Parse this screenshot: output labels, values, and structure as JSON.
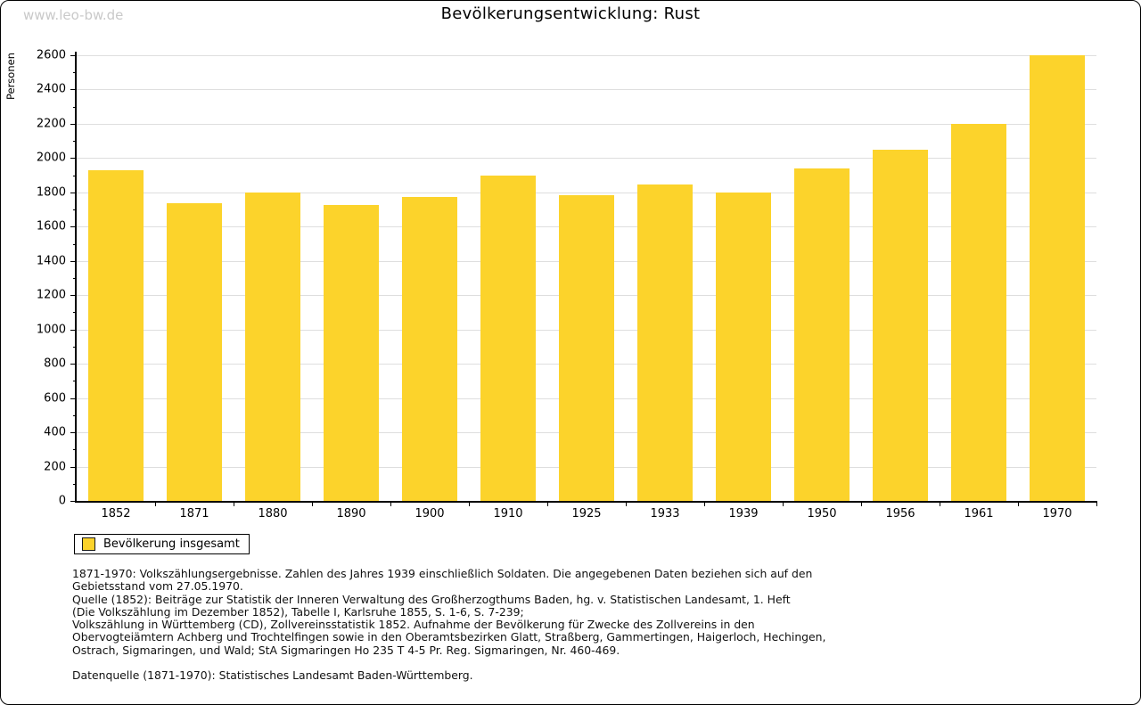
{
  "watermark": "www.leo-bw.de",
  "header": {
    "title": "Bevölkerungsentwicklung: Rust"
  },
  "chart_data": {
    "type": "bar",
    "title": "Bevölkerungsentwicklung: Rust",
    "categories": [
      "1852",
      "1871",
      "1880",
      "1890",
      "1900",
      "1910",
      "1925",
      "1933",
      "1939",
      "1950",
      "1956",
      "1961",
      "1970"
    ],
    "values": [
      1930,
      1735,
      1800,
      1725,
      1775,
      1900,
      1785,
      1845,
      1800,
      1940,
      2050,
      2200,
      2600
    ],
    "xlabel": "",
    "ylabel": "Personen",
    "ylim": [
      0,
      2600
    ],
    "ytick_step": 200,
    "minor_tick_step": 100,
    "grid": true,
    "legend_position": "bottom-left",
    "legend_entries": [
      "Bevölkerung insgesamt"
    ],
    "bar_color": "#FCD32B",
    "gridline_color": "#dedede",
    "axis_color": "#000000"
  },
  "legend": {
    "label": "Bevölkerung insgesamt",
    "swatch_color": "#FCD32B"
  },
  "footnotes": [
    "1871-1970: Volkszählungsergebnisse. Zahlen des Jahres 1939 einschließlich Soldaten. Die angegebenen Daten beziehen sich auf den",
    "Gebietsstand vom 27.05.1970.",
    "Quelle (1852): Beiträge zur Statistik der Inneren Verwaltung des Großherzogthums Baden, hg. v. Statistischen Landesamt, 1. Heft",
    "(Die Volkszählung im Dezember 1852), Tabelle I, Karlsruhe 1855, S. 1-6, S. 7-239;",
    "Volkszählung in Württemberg (CD), Zollvereinsstatistik 1852. Aufnahme der Bevölkerung für Zwecke des Zollvereins in den",
    "Obervogteiämtern Achberg und Trochtelfingen sowie in den Oberamtsbezirken Glatt, Straßberg, Gammertingen, Haigerloch, Hechingen,",
    "Ostrach, Sigmaringen, und Wald; StA Sigmaringen Ho 235 T 4-5 Pr. Reg. Sigmaringen, Nr. 460-469."
  ],
  "datasource": "Datenquelle (1871-1970): Statistisches Landesamt Baden-Württemberg."
}
